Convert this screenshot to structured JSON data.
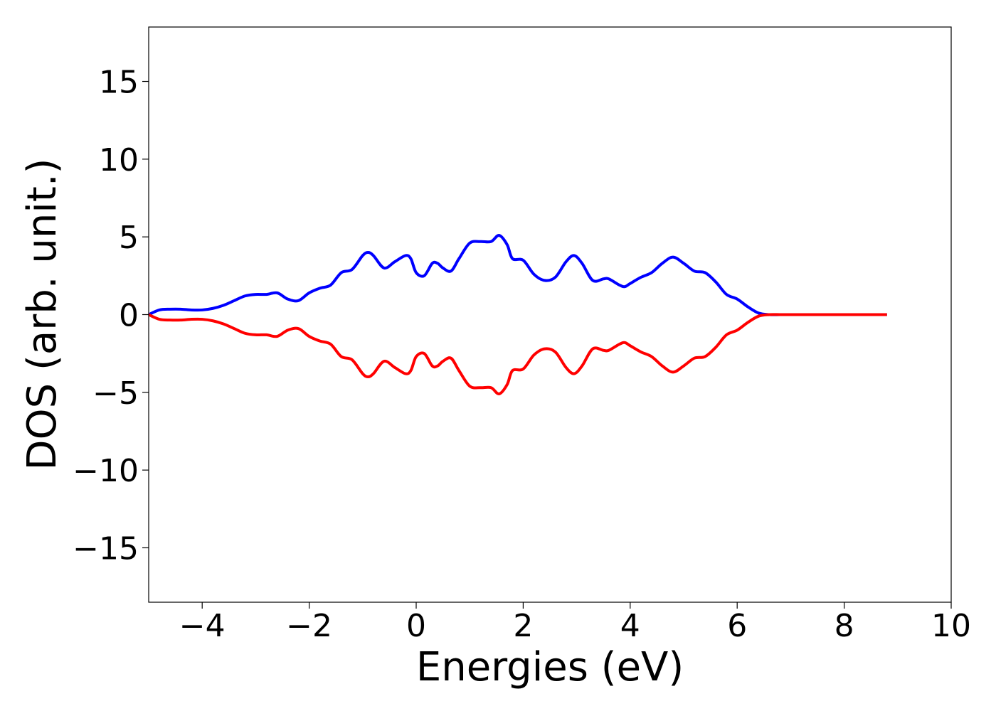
{
  "chart_data": {
    "type": "line",
    "xlabel": "Energies (eV)",
    "ylabel": "DOS (arb. unit.)",
    "xlim": [
      -5,
      10
    ],
    "ylim": [
      -18.5,
      18.5
    ],
    "x_ticks": [
      -4,
      -2,
      0,
      2,
      4,
      6,
      8,
      10
    ],
    "x_tick_labels": [
      "−4",
      "−2",
      "0",
      "2",
      "4",
      "6",
      "8",
      "10"
    ],
    "y_ticks": [
      15,
      10,
      5,
      0,
      -5,
      -10,
      -15
    ],
    "y_tick_labels": [
      "15",
      "10",
      "5",
      "0",
      "−5",
      "−10",
      "−15"
    ],
    "grid": false,
    "legend": "none",
    "x": [
      -5.0,
      -4.8,
      -4.6,
      -4.4,
      -4.2,
      -4.0,
      -3.8,
      -3.6,
      -3.4,
      -3.2,
      -3.0,
      -2.8,
      -2.6,
      -2.4,
      -2.2,
      -2.0,
      -1.8,
      -1.6,
      -1.4,
      -1.2,
      -1.0,
      -0.9,
      -0.8,
      -0.6,
      -0.4,
      -0.2,
      -0.1,
      0.0,
      0.15,
      0.3,
      0.4,
      0.5,
      0.65,
      0.8,
      1.0,
      1.2,
      1.4,
      1.55,
      1.7,
      1.8,
      2.0,
      2.2,
      2.4,
      2.6,
      2.8,
      2.95,
      3.1,
      3.3,
      3.5,
      3.6,
      3.8,
      3.9,
      4.0,
      4.2,
      4.4,
      4.6,
      4.8,
      5.0,
      5.2,
      5.4,
      5.6,
      5.8,
      6.0,
      6.2,
      6.4,
      6.6,
      6.8,
      7.0,
      7.5,
      8.0,
      8.5,
      8.8
    ],
    "series": [
      {
        "color": "#0000ff",
        "values": [
          0.0,
          0.3,
          0.35,
          0.35,
          0.3,
          0.3,
          0.4,
          0.6,
          0.9,
          1.2,
          1.3,
          1.3,
          1.4,
          1.0,
          0.9,
          1.4,
          1.7,
          1.9,
          2.7,
          2.9,
          3.8,
          4.0,
          3.8,
          3.0,
          3.4,
          3.8,
          3.6,
          2.7,
          2.5,
          3.3,
          3.3,
          3.0,
          2.8,
          3.6,
          4.6,
          4.7,
          4.7,
          5.1,
          4.5,
          3.6,
          3.5,
          2.6,
          2.2,
          2.4,
          3.4,
          3.8,
          3.3,
          2.2,
          2.3,
          2.3,
          1.9,
          1.8,
          2.0,
          2.4,
          2.7,
          3.3,
          3.7,
          3.3,
          2.8,
          2.7,
          2.1,
          1.3,
          1.0,
          0.5,
          0.1,
          0.0,
          0.0,
          0.0,
          0.0,
          0.0,
          0.0,
          0.0
        ]
      },
      {
        "color": "#ff0000",
        "values": [
          0.0,
          -0.3,
          -0.35,
          -0.35,
          -0.3,
          -0.3,
          -0.4,
          -0.6,
          -0.9,
          -1.2,
          -1.3,
          -1.3,
          -1.4,
          -1.0,
          -0.9,
          -1.4,
          -1.7,
          -1.9,
          -2.7,
          -2.9,
          -3.8,
          -4.0,
          -3.8,
          -3.0,
          -3.4,
          -3.8,
          -3.6,
          -2.7,
          -2.5,
          -3.3,
          -3.3,
          -3.0,
          -2.8,
          -3.6,
          -4.6,
          -4.7,
          -4.7,
          -5.1,
          -4.5,
          -3.6,
          -3.5,
          -2.6,
          -2.2,
          -2.4,
          -3.4,
          -3.8,
          -3.3,
          -2.2,
          -2.3,
          -2.3,
          -1.9,
          -1.8,
          -2.0,
          -2.4,
          -2.7,
          -3.3,
          -3.7,
          -3.3,
          -2.8,
          -2.7,
          -2.1,
          -1.3,
          -1.0,
          -0.5,
          -0.1,
          0.0,
          0.0,
          0.0,
          0.0,
          0.0,
          0.0,
          0.0
        ]
      }
    ]
  }
}
